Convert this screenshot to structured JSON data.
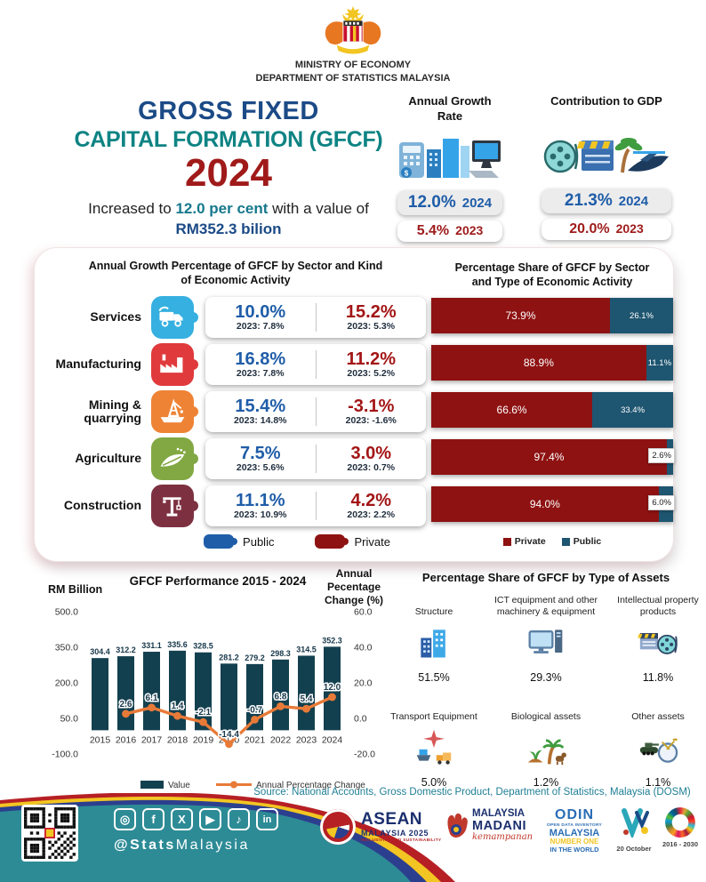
{
  "header": {
    "ministry_line1": "MINISTRY OF ECONOMY",
    "ministry_line2": "DEPARTMENT OF STATISTICS MALAYSIA"
  },
  "hero": {
    "title_line1": "GROSS FIXED",
    "title_line2": "CAPITAL FORMATION (GFCF)",
    "year": "2024",
    "subtitle": {
      "prefix": "Increased to ",
      "highlight1": "12.0 per cent",
      "middle": " with a value of ",
      "highlight2": "RM352.3 bilion"
    }
  },
  "stats": [
    {
      "title": "Annual Growth Rate",
      "icon": "economy-buildings-computer-icon",
      "current_value": "12.0%",
      "current_year": "2024",
      "prev_value": "5.4%",
      "prev_year": "2023"
    },
    {
      "title": "Contribution to GDP",
      "icon": "film-clapper-palm-plane-icon",
      "current_value": "21.3%",
      "current_year": "2024",
      "prev_value": "20.0%",
      "prev_year": "2023"
    }
  ],
  "sector_panel": {
    "title_line1": "Annual Growth Percentage of GFCF by Sector and Kind",
    "title_line2": "of Economic Activity",
    "rows": [
      {
        "label": "Services",
        "icon": "services-truck-icon",
        "color": "#35b0e0",
        "public_value": "10.0%",
        "public_prev": "2023: 7.8%",
        "private_value": "15.2%",
        "private_prev": "2023: 5.3%"
      },
      {
        "label": "Manufacturing",
        "icon": "factory-icon",
        "color": "#e03a3c",
        "public_value": "16.8%",
        "public_prev": "2023: 7.8%",
        "private_value": "11.2%",
        "private_prev": "2023: 5.2%"
      },
      {
        "label": "Mining & quarrying",
        "icon": "oil-rig-icon",
        "color": "#ee8335",
        "public_value": "15.4%",
        "public_prev": "2023: 14.8%",
        "private_value": "-3.1%",
        "private_prev": "2023: -1.6%"
      },
      {
        "label": "Agriculture",
        "icon": "agriculture-leaf-icon",
        "color": "#82a843",
        "public_value": "7.5%",
        "public_prev": "2023: 5.6%",
        "private_value": "3.0%",
        "private_prev": "2023: 0.7%"
      },
      {
        "label": "Construction",
        "icon": "crane-icon",
        "color": "#7d3140",
        "public_value": "11.1%",
        "public_prev": "2023: 10.9%",
        "private_value": "4.2%",
        "private_prev": "2023: 2.2%"
      }
    ],
    "legend": [
      {
        "label": "Public",
        "color": "#1f5da8"
      },
      {
        "label": "Private",
        "color": "#8e1212"
      }
    ]
  },
  "chart_data": [
    {
      "type": "bar",
      "name": "gfcf-performance",
      "title": "GFCF Performance 2015 - 2024",
      "categories": [
        "2015",
        "2016",
        "2017",
        "2018",
        "2019",
        "2020",
        "2021",
        "2022",
        "2023",
        "2024"
      ],
      "series": [
        {
          "name": "Value",
          "type": "bar",
          "color": "#13404f",
          "values": [
            304.4,
            312.2,
            331.1,
            335.6,
            328.5,
            281.2,
            279.2,
            298.3,
            314.5,
            352.3
          ]
        },
        {
          "name": "Annual Percentage Change",
          "type": "line",
          "color": "#e87a38",
          "values": [
            null,
            2.6,
            6.1,
            1.4,
            -2.1,
            -14.4,
            -0.7,
            6.8,
            5.4,
            12.0
          ]
        }
      ],
      "left_axis": {
        "label": "RM Billion",
        "ticks": [
          "500.0",
          "350.0",
          "200.0",
          "50.0",
          "-100.0"
        ],
        "min": -100,
        "max": 500
      },
      "right_axis": {
        "label_line1": "Annual Pecentage",
        "label_line2": "Change (%)",
        "ticks": [
          "60.0",
          "40.0",
          "20.0",
          "0.0",
          "-20.0"
        ],
        "min": -20,
        "max": 60
      },
      "grid": false,
      "legend_position": "bottom"
    },
    {
      "type": "bar",
      "subtype": "stacked-horizontal",
      "name": "share-by-sector",
      "title_line1": "Percentage Share of GFCF by Sector",
      "title_line2": "and Type of Economic Activity",
      "categories": [
        "Services",
        "Manufacturing",
        "Mining & quarrying",
        "Agriculture",
        "Construction"
      ],
      "series": [
        {
          "name": "Private",
          "color": "#8e1212",
          "values": [
            73.9,
            88.9,
            66.6,
            97.4,
            94.0
          ]
        },
        {
          "name": "Public",
          "color": "#1e5570",
          "values": [
            26.1,
            11.1,
            33.4,
            2.6,
            6.0
          ]
        }
      ],
      "boxed_public_labels": [
        false,
        false,
        false,
        true,
        true
      ],
      "xlim": [
        0,
        100
      ],
      "legend_position": "bottom"
    },
    {
      "type": "pictogram",
      "name": "share-by-assets",
      "title": "Percentage Share of GFCF by Type of Assets",
      "categories": [
        "Structure",
        "ICT equipment and other machinery & equipment",
        "Intellectual property products",
        "Transport Equipment",
        "Biological assets",
        "Other assets"
      ],
      "values": [
        51.5,
        29.3,
        11.8,
        5.0,
        1.2,
        1.1
      ],
      "value_labels": [
        "51.5%",
        "29.3%",
        "11.8%",
        "5.0%",
        "1.2%",
        "1.1%"
      ],
      "icons": [
        "buildings-icon",
        "computer-icon",
        "clapper-reel-icon",
        "transport-icon",
        "plant-palm-cow-icon",
        "tank-drum-icon"
      ]
    }
  ],
  "source": "Source: National Accounts, Gross Domestic Product, Department of Statistics, Malaysia (DOSM)",
  "footer": {
    "handle_bold": "@Stats",
    "handle_rest": "Malaysia",
    "social": [
      {
        "name": "instagram",
        "glyph": "◎"
      },
      {
        "name": "facebook",
        "glyph": "f"
      },
      {
        "name": "x-twitter",
        "glyph": "X"
      },
      {
        "name": "youtube",
        "glyph": "▶"
      },
      {
        "name": "tiktok",
        "glyph": "♪"
      },
      {
        "name": "linkedin",
        "glyph": "in"
      }
    ],
    "logos": {
      "asean": {
        "line1": "ASEAN",
        "line2": "MALAYSIA 2025",
        "line3": "INCLUSIVITY AND SUSTAINABILITY"
      },
      "madani": {
        "line1": "MALAYSIA",
        "line2": "MADANI",
        "line3": "kemampanan"
      },
      "odin": {
        "line1": "ODIN",
        "line2": "OPEN DATA INVENTORY",
        "line3": "MALAYSIA",
        "line4": "NUMBER ONE",
        "line5": "IN THE WORLD"
      },
      "wdvd": {
        "caption": "20 October"
      },
      "sdg": {
        "caption": "2016 - 2030"
      }
    }
  }
}
